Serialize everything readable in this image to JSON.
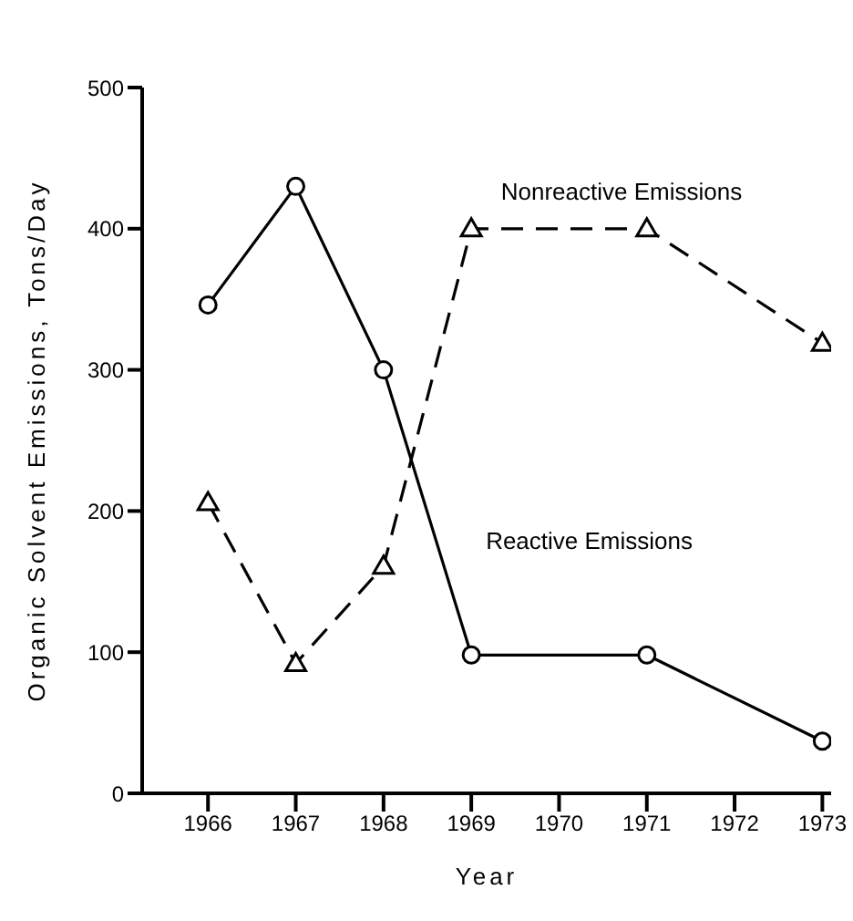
{
  "chart_data": {
    "type": "line",
    "xlabel": "Year",
    "ylabel": "Organic Solvent Emissions, Tons/Day",
    "x": [
      1966,
      1967,
      1968,
      1969,
      1971,
      1973
    ],
    "series": [
      {
        "name": "Reactive Emissions",
        "color": "#000000",
        "marker": "circle",
        "line_style": "solid",
        "values": [
          346,
          430,
          300,
          98,
          98,
          37
        ]
      },
      {
        "name": "Nonreactive Emissions",
        "color": "#000000",
        "marker": "triangle",
        "line_style": "dashed",
        "values": [
          206,
          92,
          161,
          400,
          400,
          319
        ]
      }
    ],
    "xlim": [
      1965.25,
      1973.1
    ],
    "xticks": [
      1966,
      1967,
      1968,
      1969,
      1970,
      1971,
      1972,
      1973
    ],
    "ylim": [
      0,
      500
    ],
    "yticks": [
      0,
      100,
      200,
      300,
      400,
      500
    ],
    "grid": false,
    "legend": false
  }
}
